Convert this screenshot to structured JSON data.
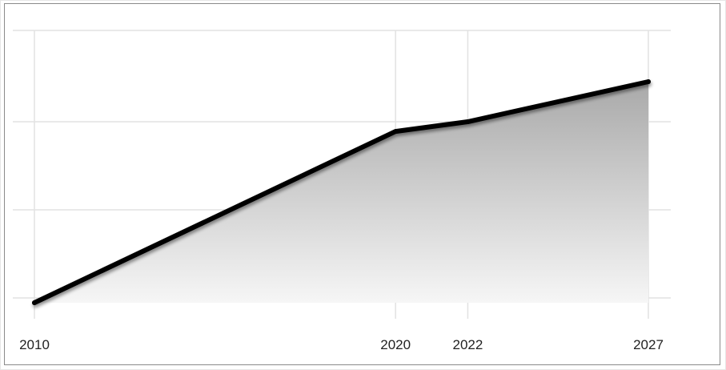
{
  "chart_data": {
    "type": "area",
    "title": "",
    "xlabel": "",
    "ylabel": "",
    "categories": [
      "2010",
      "2020",
      "2022",
      "2027"
    ],
    "series": [
      {
        "values": [
          0,
          62,
          65.5,
          80
        ]
      }
    ],
    "ylim": [
      0,
      100
    ],
    "grid": true,
    "legend": "none",
    "colors": {
      "line": "#000000",
      "fill_top": "#a9a9a9",
      "fill_bottom": "#f6f6f6",
      "grid": "#e2e2e2"
    }
  }
}
